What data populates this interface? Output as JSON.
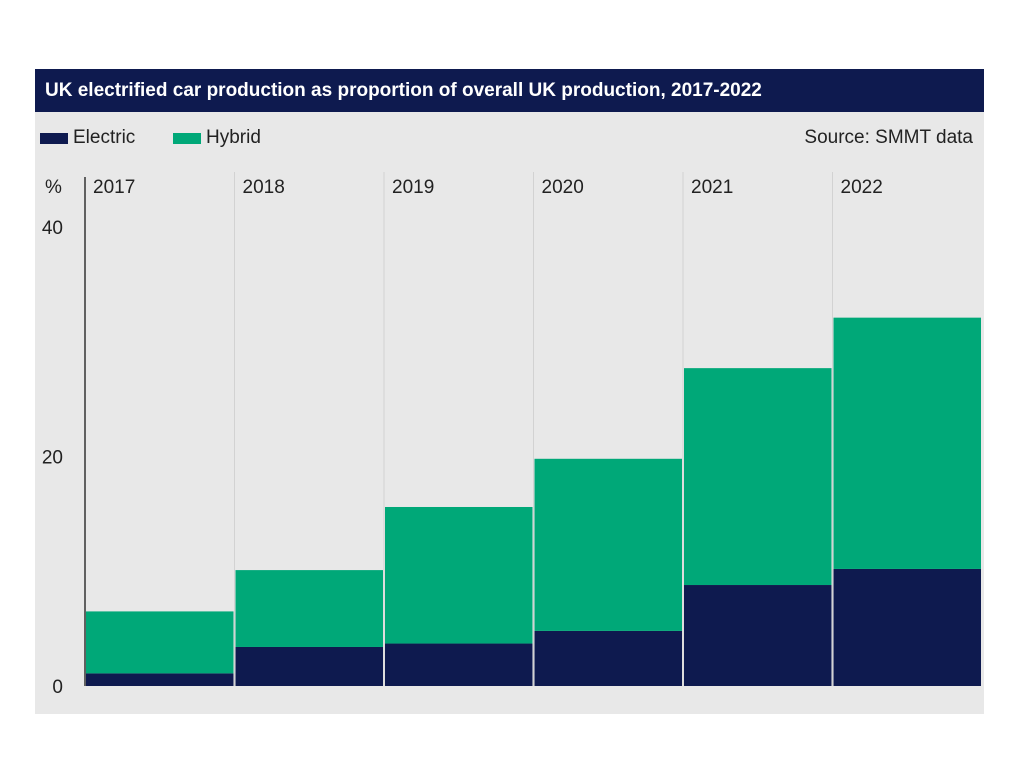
{
  "chart_data": {
    "type": "bar",
    "stacked": true,
    "title": "UK electrified car production as proportion of overall UK production, 2017-2022",
    "source": "Source: SMMT data",
    "ylabel": "%",
    "ylim": [
      0,
      40
    ],
    "yticks": [
      0,
      20,
      40
    ],
    "categories": [
      "2017",
      "2018",
      "2019",
      "2020",
      "2021",
      "2022"
    ],
    "series": [
      {
        "name": "Electric",
        "color": "#0e1a4f",
        "values": [
          1.1,
          3.4,
          3.7,
          4.8,
          8.8,
          10.2
        ]
      },
      {
        "name": "Hybrid",
        "color": "#00a878",
        "values": [
          5.4,
          6.7,
          11.9,
          15.0,
          18.9,
          21.9
        ]
      }
    ],
    "legend_position": "top-left",
    "grid": false
  },
  "colors": {
    "header_background": "#0e1a4f",
    "panel_background": "#e8e8e8"
  }
}
